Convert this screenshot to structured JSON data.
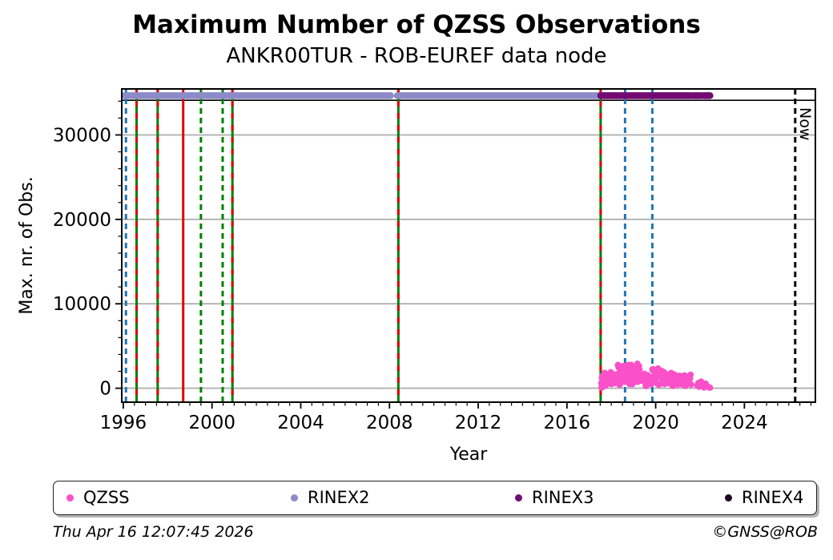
{
  "footer": {
    "timestamp": "Thu Apr 16 12:07:45 2026",
    "credit": "©GNSS@ROB"
  },
  "legend": [
    {
      "label": "QZSS",
      "color": "#fa50c8"
    },
    {
      "label": "RINEX2",
      "color": "#8d8ac8"
    },
    {
      "label": "RINEX3",
      "color": "#730b73"
    },
    {
      "label": "RINEX4",
      "color": "#1f001f"
    }
  ],
  "chart_data": {
    "type": "scatter",
    "title": "Maximum Number of QZSS Observations",
    "subtitle": "ANKR00TUR - ROB-EUREF data node",
    "xlabel": "Year",
    "ylabel": "Max. nr. of Obs.",
    "now_label": "Now",
    "xlim": [
      1995.93,
      2027.2
    ],
    "ylim": [
      -1650,
      35450
    ],
    "xticks": [
      1996,
      2000,
      2004,
      2008,
      2012,
      2016,
      2020,
      2024
    ],
    "yticks": [
      0,
      10000,
      20000,
      30000
    ],
    "x_minor_step": 0.5,
    "y_minor_step": 2000,
    "grid": "horizontal",
    "grid_color": "#b0b0b0",
    "max_obs_line": {
      "value": 34100,
      "color": "#000000"
    },
    "event_lines": [
      {
        "x": 1996.12,
        "color": "#1f77b4",
        "style": "dashed"
      },
      {
        "x": 1996.6,
        "color": "#008000",
        "style": "solid",
        "overlay": "#e00000"
      },
      {
        "x": 1997.55,
        "color": "#008000",
        "style": "solid",
        "overlay": "#e00000"
      },
      {
        "x": 1998.7,
        "color": "#e00000",
        "style": "solid"
      },
      {
        "x": 1999.5,
        "color": "#008000",
        "style": "dashed"
      },
      {
        "x": 2000.48,
        "color": "#008000",
        "style": "dashed"
      },
      {
        "x": 2000.92,
        "color": "#008000",
        "style": "solid",
        "overlay": "#e00000"
      },
      {
        "x": 2008.4,
        "color": "#008000",
        "style": "solid",
        "overlay": "#e00000"
      },
      {
        "x": 2017.52,
        "color": "#008000",
        "style": "solid",
        "overlay": "#e00000"
      },
      {
        "x": 2018.62,
        "color": "#1f77b4",
        "style": "dashed"
      },
      {
        "x": 2019.85,
        "color": "#1f77b4",
        "style": "dashed"
      },
      {
        "x": 2026.29,
        "color": "#000000",
        "style": "dashed",
        "label": "Now"
      }
    ],
    "series": [
      {
        "name": "RINEX2",
        "type": "band",
        "value": 34650,
        "color": "#8d8ac8",
        "segments": [
          [
            1996.05,
            2008.05
          ],
          [
            2008.35,
            2017.52
          ]
        ]
      },
      {
        "name": "RINEX3",
        "type": "band",
        "value": 34650,
        "color": "#730b73",
        "segments": [
          [
            2017.52,
            2021.62
          ],
          [
            2021.73,
            2022.05
          ],
          [
            2022.16,
            2022.45
          ]
        ]
      },
      {
        "name": "QZSS",
        "type": "scatter",
        "color": "#fa50c8",
        "points": [
          [
            2017.55,
            605
          ],
          [
            2017.6,
            1440
          ],
          [
            2017.65,
            980
          ],
          [
            2017.7,
            1810
          ],
          [
            2017.75,
            330
          ],
          [
            2017.8,
            1160
          ],
          [
            2017.85,
            1620
          ],
          [
            2017.9,
            790
          ],
          [
            2017.95,
            1350
          ],
          [
            2018.0,
            510
          ],
          [
            2018.05,
            1720
          ],
          [
            2018.1,
            1070
          ],
          [
            2018.15,
            600
          ],
          [
            2018.2,
            1440
          ],
          [
            2018.25,
            980
          ],
          [
            2018.3,
            2760
          ],
          [
            2018.35,
            480
          ],
          [
            2018.4,
            1760
          ],
          [
            2018.45,
            2470
          ],
          [
            2018.5,
            1190
          ],
          [
            2018.55,
            2050
          ],
          [
            2018.6,
            760
          ],
          [
            2018.65,
            2620
          ],
          [
            2018.7,
            1620
          ],
          [
            2018.75,
            900
          ],
          [
            2018.8,
            2190
          ],
          [
            2018.85,
            1480
          ],
          [
            2018.9,
            2760
          ],
          [
            2018.95,
            480
          ],
          [
            2019.0,
            1760
          ],
          [
            2019.05,
            2470
          ],
          [
            2019.1,
            1190
          ],
          [
            2019.15,
            2050
          ],
          [
            2019.2,
            760
          ],
          [
            2019.25,
            2620
          ],
          [
            2019.3,
            1620
          ],
          [
            2019.35,
            900
          ],
          [
            2019.4,
            1360
          ],
          [
            2019.45,
            930
          ],
          [
            2019.5,
            1710
          ],
          [
            2019.55,
            310
          ],
          [
            2019.6,
            1100
          ],
          [
            2019.65,
            1540
          ],
          [
            2019.7,
            750
          ],
          [
            2019.75,
            1280
          ],
          [
            2019.8,
            490
          ],
          [
            2019.85,
            2210
          ],
          [
            2019.9,
            1370
          ],
          [
            2019.95,
            770
          ],
          [
            2020.0,
            1850
          ],
          [
            2020.05,
            1250
          ],
          [
            2020.1,
            2330
          ],
          [
            2020.15,
            410
          ],
          [
            2020.2,
            1490
          ],
          [
            2020.25,
            2090
          ],
          [
            2020.3,
            1010
          ],
          [
            2020.35,
            1730
          ],
          [
            2020.4,
            510
          ],
          [
            2020.45,
            1720
          ],
          [
            2020.5,
            1070
          ],
          [
            2020.55,
            610
          ],
          [
            2020.6,
            1440
          ],
          [
            2020.65,
            980
          ],
          [
            2020.7,
            1810
          ],
          [
            2020.75,
            330
          ],
          [
            2020.8,
            1160
          ],
          [
            2020.85,
            1620
          ],
          [
            2020.9,
            790
          ],
          [
            2020.95,
            1140
          ],
          [
            2021.0,
            440
          ],
          [
            2021.05,
            1450
          ],
          [
            2021.1,
            900
          ],
          [
            2021.15,
            520
          ],
          [
            2021.2,
            1210
          ],
          [
            2021.25,
            830
          ],
          [
            2021.3,
            1520
          ],
          [
            2021.35,
            280
          ],
          [
            2021.4,
            980
          ],
          [
            2021.45,
            1370
          ],
          [
            2021.5,
            670
          ],
          [
            2021.55,
            1140
          ],
          [
            2021.6,
            440
          ],
          [
            2018.325,
            2470
          ],
          [
            2018.375,
            1190
          ],
          [
            2018.425,
            2050
          ],
          [
            2018.475,
            760
          ],
          [
            2018.525,
            2620
          ],
          [
            2018.575,
            1620
          ],
          [
            2018.625,
            900
          ],
          [
            2018.675,
            2190
          ],
          [
            2018.725,
            1480
          ],
          [
            2018.775,
            2760
          ],
          [
            2018.825,
            480
          ],
          [
            2018.875,
            1760
          ],
          [
            2018.925,
            2470
          ],
          [
            2018.975,
            1190
          ],
          [
            2019.025,
            2050
          ],
          [
            2019.075,
            760
          ],
          [
            2019.125,
            2620
          ],
          [
            2019.175,
            1620
          ],
          [
            2019.225,
            900
          ],
          [
            2019.275,
            2190
          ],
          [
            2019.325,
            1480
          ],
          [
            2017.575,
            1250
          ],
          [
            2017.675,
            420
          ],
          [
            2017.775,
            1530
          ],
          [
            2017.875,
            880
          ],
          [
            2017.975,
            1900
          ],
          [
            2018.075,
            700
          ],
          [
            2018.175,
            1120
          ],
          [
            2018.275,
            1680
          ],
          [
            2018.375,
            390
          ],
          [
            2018.475,
            2100
          ],
          [
            2018.575,
            850
          ],
          [
            2018.675,
            2670
          ],
          [
            2018.775,
            1900
          ],
          [
            2018.875,
            620
          ],
          [
            2018.975,
            2330
          ],
          [
            2019.075,
            1330
          ],
          [
            2019.175,
            2900
          ],
          [
            2019.275,
            1050
          ],
          [
            2019.375,
            1070
          ],
          [
            2019.475,
            1590
          ],
          [
            2019.575,
            260
          ],
          [
            2019.675,
            1310
          ],
          [
            2019.775,
            540
          ],
          [
            2019.875,
            2260
          ],
          [
            2019.975,
            1610
          ],
          [
            2020.075,
            530
          ],
          [
            2020.175,
            1970
          ],
          [
            2020.275,
            1130
          ],
          [
            2020.375,
            1900
          ],
          [
            2020.475,
            700
          ],
          [
            2020.575,
            1120
          ],
          [
            2020.675,
            1680
          ],
          [
            2020.775,
            270
          ],
          [
            2020.875,
            1380
          ],
          [
            2020.975,
            480
          ],
          [
            2021.075,
            1480
          ],
          [
            2021.175,
            1060
          ],
          [
            2021.275,
            360
          ],
          [
            2021.375,
            1290
          ],
          [
            2021.475,
            750
          ],
          [
            2021.575,
            1600
          ],
          [
            2021.88,
            320
          ],
          [
            2021.92,
            610
          ],
          [
            2021.96,
            180
          ],
          [
            2022.0,
            450
          ],
          [
            2022.05,
            780
          ],
          [
            2022.1,
            350
          ],
          [
            2022.18,
            90
          ],
          [
            2022.25,
            540
          ],
          [
            2022.32,
            260
          ],
          [
            2022.4,
            120
          ],
          [
            2022.45,
            60
          ],
          [
            2017.56,
            80
          ],
          [
            2017.62,
            150
          ]
        ]
      }
    ]
  }
}
